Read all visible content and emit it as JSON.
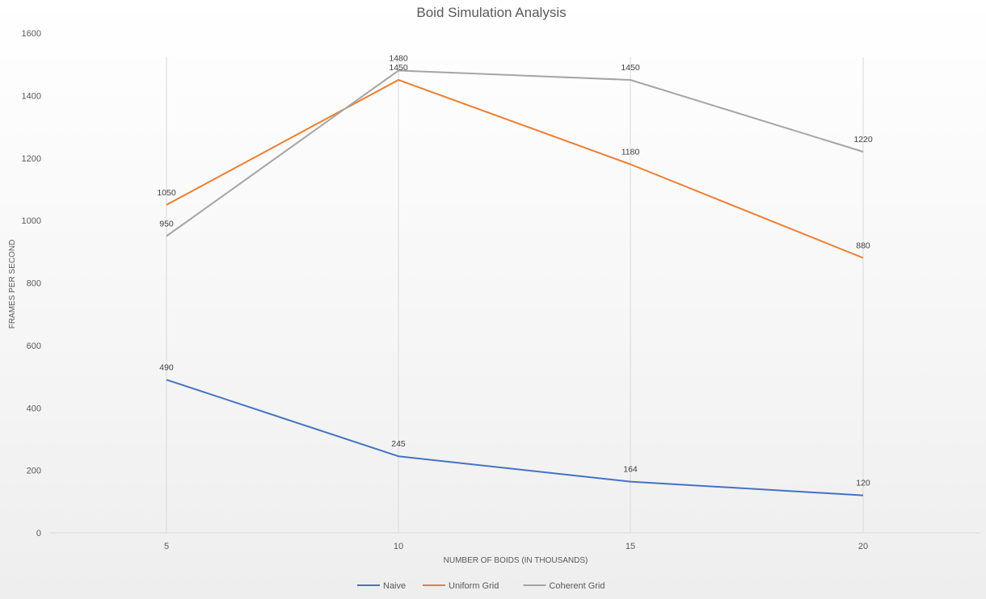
{
  "chart_data": {
    "type": "line",
    "title": "Boid Simulation Analysis",
    "xlabel": "NUMBER OF BOIDS (IN THOUSANDS)",
    "ylabel": "FRAMES PER SECOND",
    "categories": [
      "5",
      "10",
      "15",
      "20"
    ],
    "ylim": [
      0,
      1600
    ],
    "yticks": [
      0,
      200,
      400,
      600,
      800,
      1000,
      1200,
      1400,
      1600
    ],
    "grid": "vertical",
    "legend": "bottom",
    "series": [
      {
        "name": "Naive",
        "color": "#4472c4",
        "values": [
          490,
          245,
          164,
          120
        ]
      },
      {
        "name": "Uniform Grid",
        "color": "#ed7d31",
        "values": [
          1050,
          1450,
          1180,
          880
        ]
      },
      {
        "name": "Coherent Grid",
        "color": "#a5a5a5",
        "values": [
          950,
          1480,
          1450,
          1220
        ]
      }
    ]
  }
}
